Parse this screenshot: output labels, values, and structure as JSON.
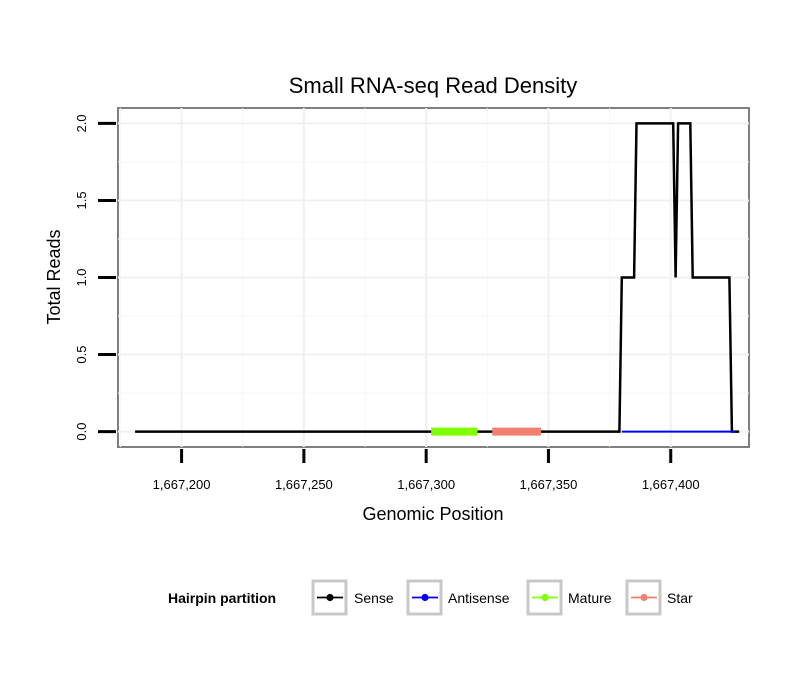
{
  "chart_data": {
    "type": "line",
    "title": "Small RNA-seq Read Density",
    "xlabel": "Genomic Position",
    "ylabel": "Total Reads",
    "xlim": [
      1667174,
      1667432
    ],
    "ylim": [
      -0.1,
      2.1
    ],
    "x_ticks": [
      {
        "value": 1667200,
        "label": "1,667,200"
      },
      {
        "value": 1667250,
        "label": "1,667,250"
      },
      {
        "value": 1667300,
        "label": "1,667,300"
      },
      {
        "value": 1667350,
        "label": "1,667,350"
      },
      {
        "value": 1667400,
        "label": "1,667,400"
      }
    ],
    "y_ticks": [
      {
        "value": 0.0,
        "label": "0.0"
      },
      {
        "value": 0.5,
        "label": "0.5"
      },
      {
        "value": 1.0,
        "label": "1.0"
      },
      {
        "value": 1.5,
        "label": "1.5"
      },
      {
        "value": 2.0,
        "label": "2.0"
      }
    ],
    "series": [
      {
        "name": "Sense",
        "color": "#000000",
        "x": [
          1667181,
          1667379,
          1667380,
          1667385,
          1667386,
          1667401,
          1667402,
          1667403,
          1667404,
          1667408,
          1667409,
          1667424,
          1667425,
          1667428
        ],
        "y": [
          0,
          0,
          1,
          1,
          2,
          2,
          1,
          2,
          2,
          2,
          1,
          1,
          0,
          0
        ]
      },
      {
        "name": "Antisense",
        "color": "#0000ff",
        "x": [
          1667380,
          1667426
        ],
        "y": [
          0,
          0
        ]
      },
      {
        "name": "Mature",
        "color": "#7fff00",
        "x": [
          1667302,
          1667321
        ],
        "y": [
          0,
          0
        ]
      },
      {
        "name": "Star",
        "color": "#f08070",
        "x": [
          1667327,
          1667347
        ],
        "y": [
          0,
          0
        ]
      }
    ],
    "legend": {
      "title": "Hairpin partition",
      "position": "bottom",
      "entries": [
        "Sense",
        "Antisense",
        "Mature",
        "Star"
      ]
    },
    "grid": true
  }
}
